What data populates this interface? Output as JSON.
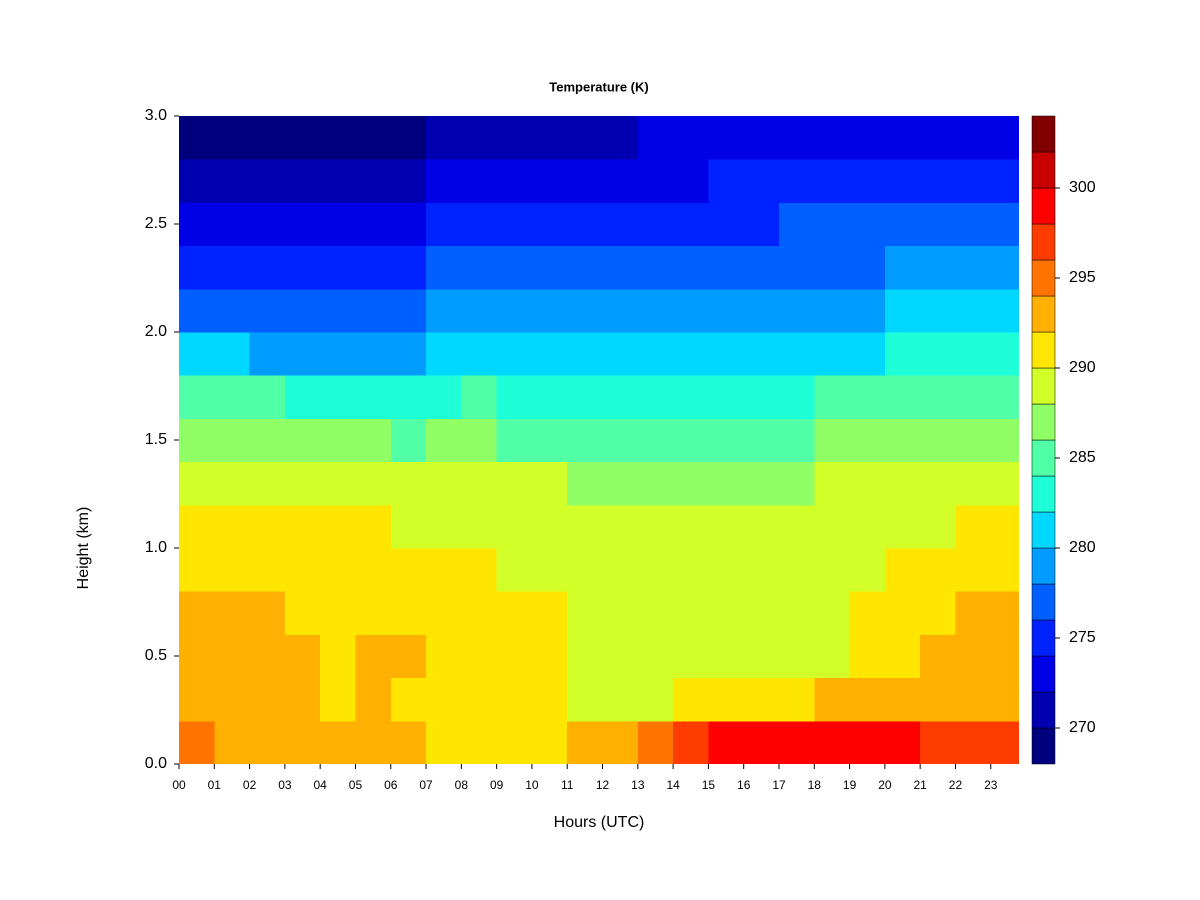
{
  "chart_data": {
    "type": "heatmap",
    "title": "Temperature (K)",
    "x_label": "Hours (UTC)",
    "y_label": "Height (km)",
    "x": [
      0.5,
      1.5,
      2.5,
      3.5,
      4.5,
      5.5,
      6.5,
      7.5,
      8.5,
      9.5,
      10.5,
      11.5,
      12.5,
      13.5,
      14.5,
      15.5,
      16.5,
      17.5,
      18.5,
      19.5,
      20.5,
      21.5,
      22.5,
      23.5
    ],
    "y": [
      0.1,
      0.3,
      0.5,
      0.7,
      0.9,
      1.1,
      1.3,
      1.5,
      1.7,
      1.9,
      2.1,
      2.3,
      2.5,
      2.7,
      2.9
    ],
    "z": [
      [
        295,
        293,
        293,
        293,
        293,
        293,
        293,
        291,
        291,
        291,
        291,
        293,
        293,
        295,
        297,
        299,
        299,
        299,
        299,
        299,
        299,
        297,
        297,
        297
      ],
      [
        293,
        293,
        293,
        293,
        291,
        293,
        291,
        291,
        291,
        291,
        291,
        289,
        289,
        289,
        291,
        291,
        291,
        291,
        293,
        293,
        293,
        293,
        293,
        293
      ],
      [
        293,
        293,
        293,
        293,
        291,
        293,
        293,
        291,
        291,
        291,
        291,
        289,
        289,
        289,
        289,
        289,
        289,
        289,
        289,
        291,
        291,
        293,
        293,
        293
      ],
      [
        293,
        293,
        293,
        291,
        291,
        291,
        291,
        291,
        291,
        291,
        291,
        289,
        289,
        289,
        289,
        289,
        289,
        289,
        289,
        291,
        291,
        291,
        293,
        293
      ],
      [
        291,
        291,
        291,
        291,
        291,
        291,
        291,
        291,
        291,
        289,
        289,
        289,
        289,
        289,
        289,
        289,
        289,
        289,
        289,
        289,
        291,
        291,
        291,
        291
      ],
      [
        291,
        291,
        291,
        291,
        291,
        291,
        289,
        289,
        289,
        289,
        289,
        289,
        289,
        289,
        289,
        289,
        289,
        289,
        289,
        289,
        289,
        289,
        291,
        291
      ],
      [
        289,
        289,
        289,
        289,
        289,
        289,
        289,
        289,
        289,
        289,
        289,
        287,
        287,
        287,
        287,
        287,
        287,
        287,
        289,
        289,
        289,
        289,
        289,
        289
      ],
      [
        287,
        287,
        287,
        287,
        287,
        287,
        285,
        287,
        287,
        285,
        285,
        285,
        285,
        285,
        285,
        285,
        285,
        285,
        287,
        287,
        287,
        287,
        287,
        287
      ],
      [
        285,
        285,
        285,
        283,
        283,
        283,
        283,
        283,
        285,
        283,
        283,
        283,
        283,
        283,
        283,
        283,
        283,
        283,
        285,
        285,
        285,
        285,
        285,
        285
      ],
      [
        281,
        281,
        279,
        279,
        279,
        279,
        279,
        281,
        281,
        281,
        281,
        281,
        281,
        281,
        281,
        281,
        281,
        281,
        281,
        281,
        283,
        283,
        283,
        283
      ],
      [
        277,
        277,
        277,
        277,
        277,
        277,
        277,
        279,
        279,
        279,
        279,
        279,
        279,
        279,
        279,
        279,
        279,
        279,
        279,
        279,
        281,
        281,
        281,
        281
      ],
      [
        275,
        275,
        275,
        275,
        275,
        275,
        275,
        277,
        277,
        277,
        277,
        277,
        277,
        277,
        277,
        277,
        277,
        277,
        277,
        277,
        279,
        279,
        279,
        279
      ],
      [
        273,
        273,
        273,
        273,
        273,
        273,
        273,
        275,
        275,
        275,
        275,
        275,
        275,
        275,
        275,
        275,
        275,
        277,
        277,
        277,
        277,
        277,
        277,
        277
      ],
      [
        271,
        271,
        271,
        271,
        271,
        271,
        271,
        273,
        273,
        273,
        273,
        273,
        273,
        273,
        273,
        275,
        275,
        275,
        275,
        275,
        275,
        275,
        275,
        275
      ],
      [
        269,
        269,
        269,
        269,
        269,
        269,
        269,
        271,
        271,
        271,
        271,
        271,
        271,
        273,
        273,
        273,
        273,
        273,
        273,
        273,
        273,
        273,
        273,
        273
      ]
    ],
    "xlim": [
      0,
      23.8
    ],
    "xticks": [
      {
        "value": 0,
        "label": "00"
      },
      {
        "value": 1,
        "label": "01"
      },
      {
        "value": 2,
        "label": "02"
      },
      {
        "value": 3,
        "label": "03"
      },
      {
        "value": 4,
        "label": "04"
      },
      {
        "value": 5,
        "label": "05"
      },
      {
        "value": 6,
        "label": "06"
      },
      {
        "value": 7,
        "label": "07"
      },
      {
        "value": 8,
        "label": "08"
      },
      {
        "value": 9,
        "label": "09"
      },
      10,
      11,
      12,
      13,
      14,
      15,
      16,
      17,
      18,
      19,
      20,
      21,
      22,
      23
    ],
    "ylim": [
      0,
      3
    ],
    "yticks": [
      {
        "value": 0,
        "label": "0.0"
      },
      0.5,
      {
        "value": 1,
        "label": "1.0"
      },
      1.5,
      {
        "value": 2,
        "label": "2.0"
      },
      2.5,
      {
        "value": 3,
        "label": "3.0"
      }
    ],
    "clim": [
      268,
      304
    ],
    "levels": [
      268,
      270,
      272,
      274,
      276,
      278,
      280,
      282,
      284,
      286,
      288,
      290,
      292,
      294,
      296,
      298,
      300,
      302,
      304
    ],
    "colors": [
      "#00007f",
      "#0000b0",
      "#0000e6",
      "#0022ff",
      "#0060ff",
      "#009cff",
      "#00d8ff",
      "#1effd8",
      "#50ffa6",
      "#90ff66",
      "#d2ff28",
      "#ffe600",
      "#ffb000",
      "#ff7400",
      "#ff3c00",
      "#ff0000",
      "#c80000",
      "#800000"
    ],
    "cticks": [
      270,
      275,
      280,
      285,
      290,
      295,
      300
    ]
  }
}
